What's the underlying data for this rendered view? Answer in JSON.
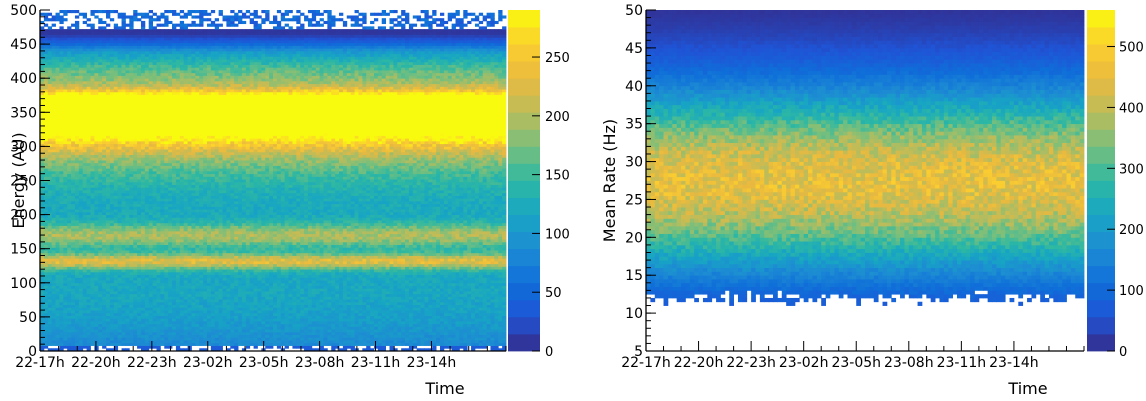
{
  "chart_data": [
    {
      "type": "heatmap",
      "xlabel": "Time",
      "ylabel": "Energy (AU)",
      "x_ticks": [
        "22-17h",
        "22-20h",
        "22-23h",
        "23-02h",
        "23-05h",
        "23-08h",
        "23-11h",
        "23-14h"
      ],
      "x_range_hours": [
        0,
        25
      ],
      "y_ticks": [
        0,
        50,
        100,
        150,
        200,
        250,
        300,
        350,
        400,
        450,
        500
      ],
      "ylim": [
        0,
        500
      ],
      "colorbar": {
        "ticks": [
          0,
          50,
          100,
          150,
          200,
          250
        ],
        "zlim": [
          0,
          290
        ]
      },
      "bands": [
        {
          "center": 355,
          "width": 14,
          "peak": 260
        },
        {
          "center": 340,
          "width": 25,
          "peak": 150
        },
        {
          "center": 320,
          "width": 40,
          "peak": 100
        },
        {
          "center": 405,
          "width": 30,
          "peak": 90
        },
        {
          "center": 170,
          "width": 12,
          "peak": 80
        },
        {
          "center": 132,
          "width": 8,
          "peak": 110
        },
        {
          "center": 260,
          "width": 120,
          "peak": 55
        },
        {
          "center": 60,
          "width": 70,
          "peak": 60
        },
        {
          "center": 240,
          "width": 110,
          "peak": 35
        }
      ],
      "empty_regions": [
        [
          0,
          10
        ],
        [
          470,
          500
        ]
      ]
    },
    {
      "type": "heatmap",
      "xlabel": "Time",
      "ylabel": "Mean Rate (Hz)",
      "x_ticks": [
        "22-17h",
        "22-20h",
        "22-23h",
        "23-02h",
        "23-05h",
        "23-08h",
        "23-11h",
        "23-14h"
      ],
      "x_range_hours": [
        0,
        25
      ],
      "y_ticks": [
        5,
        10,
        15,
        20,
        25,
        30,
        35,
        40,
        45,
        50
      ],
      "ylim": [
        5,
        50
      ],
      "colorbar": {
        "ticks": [
          0,
          100,
          200,
          300,
          400,
          500
        ],
        "zlim": [
          0,
          560
        ]
      },
      "peak_center": 27.5,
      "peak_value": 450,
      "lower_cutoff": 12
    }
  ],
  "colors": {
    "palette": [
      "#352a87",
      "#1f54d6",
      "#0f6fd9",
      "#1d8bd3",
      "#17a5c4",
      "#2db8a3",
      "#79bf7c",
      "#bbbc5b",
      "#e9b93f",
      "#fccf2f",
      "#f9fb0e"
    ]
  }
}
